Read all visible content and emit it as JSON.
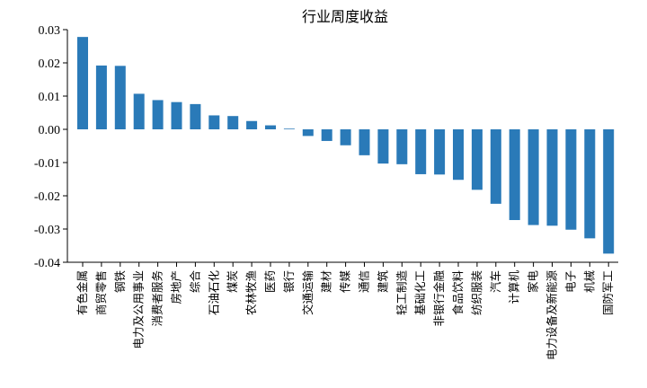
{
  "chart_data": {
    "type": "bar",
    "title": "行业周度收益",
    "xlabel": "",
    "ylabel": "",
    "ylim": [
      -0.04,
      0.03
    ],
    "yticks": [
      0.03,
      0.02,
      0.01,
      0.0,
      -0.01,
      -0.02,
      -0.03,
      -0.04
    ],
    "ytick_labels": [
      "0.03",
      "0.02",
      "0.01",
      "0.00",
      "-0.01",
      "-0.02",
      "-0.03",
      "-0.04"
    ],
    "grid": false,
    "bar_color": "#2a7ab8",
    "categories": [
      "有色金属",
      "商贸零售",
      "钢铁",
      "电力及公用事业",
      "消费者服务",
      "房地产",
      "综合",
      "石油石化",
      "煤炭",
      "农林牧渔",
      "医药",
      "银行",
      "交通运输",
      "建材",
      "传媒",
      "通信",
      "建筑",
      "轻工制造",
      "基础化工",
      "非银行金融",
      "食品饮料",
      "纺织服装",
      "汽车",
      "计算机",
      "家电",
      "电力设备及新能源",
      "电子",
      "机械",
      "国防军工"
    ],
    "values": [
      0.0278,
      0.0192,
      0.0191,
      0.0107,
      0.0088,
      0.0082,
      0.0076,
      0.0042,
      0.004,
      0.0025,
      0.0012,
      0.0002,
      -0.002,
      -0.0035,
      -0.0048,
      -0.0078,
      -0.0103,
      -0.0105,
      -0.0135,
      -0.0136,
      -0.0152,
      -0.0182,
      -0.0224,
      -0.0273,
      -0.0288,
      -0.029,
      -0.0302,
      -0.0328,
      -0.0374
    ]
  }
}
